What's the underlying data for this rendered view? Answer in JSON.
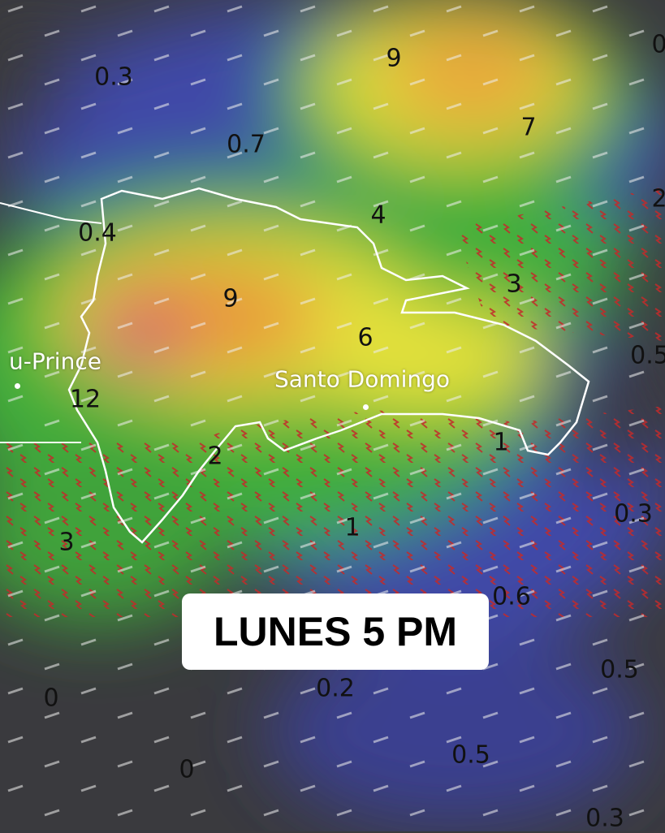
{
  "banner": {
    "label": "LUNES 5 PM"
  },
  "cities": [
    {
      "name": "u-Prince"
    },
    {
      "name": "Santo Domingo"
    }
  ],
  "values": [
    "9",
    "0.3",
    "0.7",
    "7",
    "4",
    "0.4",
    "3",
    "9",
    "0.5",
    "12",
    "6",
    "1",
    "2",
    "0.3",
    "1",
    "3",
    "0.6",
    "0.5",
    "0.2",
    "0",
    "0.5",
    "0",
    "0.3",
    "2",
    "0"
  ],
  "legend_colors": {
    "low": "#3b3f9a",
    "mid": "#3fae3a",
    "high_yellow": "#e6e23a",
    "orange": "#e8963a",
    "peak": "#d0307a",
    "none": "#3a3a3e"
  },
  "icons": [
    "wind-streak-icon",
    "lightning-icon"
  ]
}
